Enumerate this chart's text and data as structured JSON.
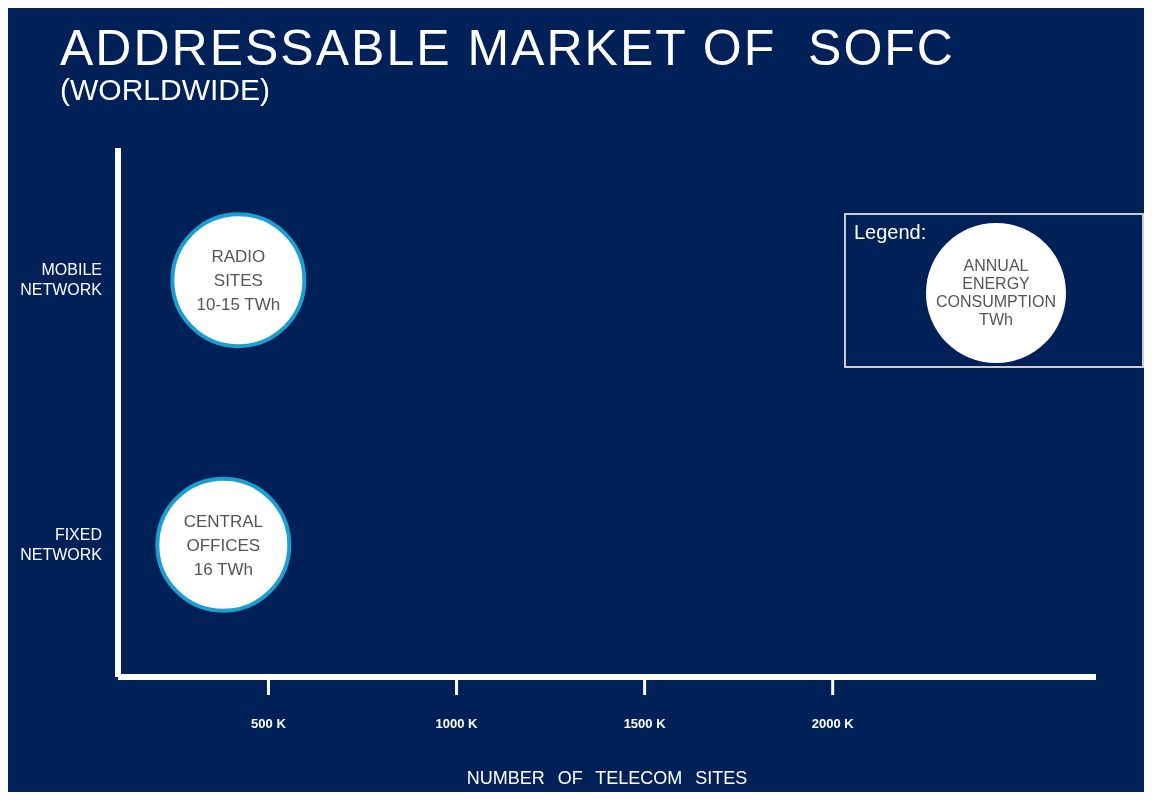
{
  "chart_data": {
    "type": "bubble",
    "orientation": "horizontal",
    "title": "ADDRESSABLE MARKET OF  SOFC",
    "subtitle": "(WORLDWIDE)",
    "xlabel": "NUMBER OF TELECOM SITES",
    "categories": [
      "MOBILE NETWORK",
      "FIXED NETWORK"
    ],
    "xlim": [
      100,
      2700
    ],
    "xticks": [
      {
        "value": 500,
        "label": "500 K"
      },
      {
        "value": 1000,
        "label": "1000 K"
      },
      {
        "value": 1500,
        "label": "1500 K"
      },
      {
        "value": 2000,
        "label": "2000 K"
      }
    ],
    "legend": "top right",
    "legend_title": "Legend:",
    "grid": false,
    "series": [
      {
        "name": "ANNUAL ENERGY CONSUMPTION TWh",
        "color": "#ffffff",
        "values": [
          420,
          380
        ],
        "sizes": [
          1,
          1
        ],
        "value_labels": [
          "RADIO SITES 10-15 TWh",
          "CENTRAL OFFICES 16 TWh"
        ]
      }
    ]
  }
}
